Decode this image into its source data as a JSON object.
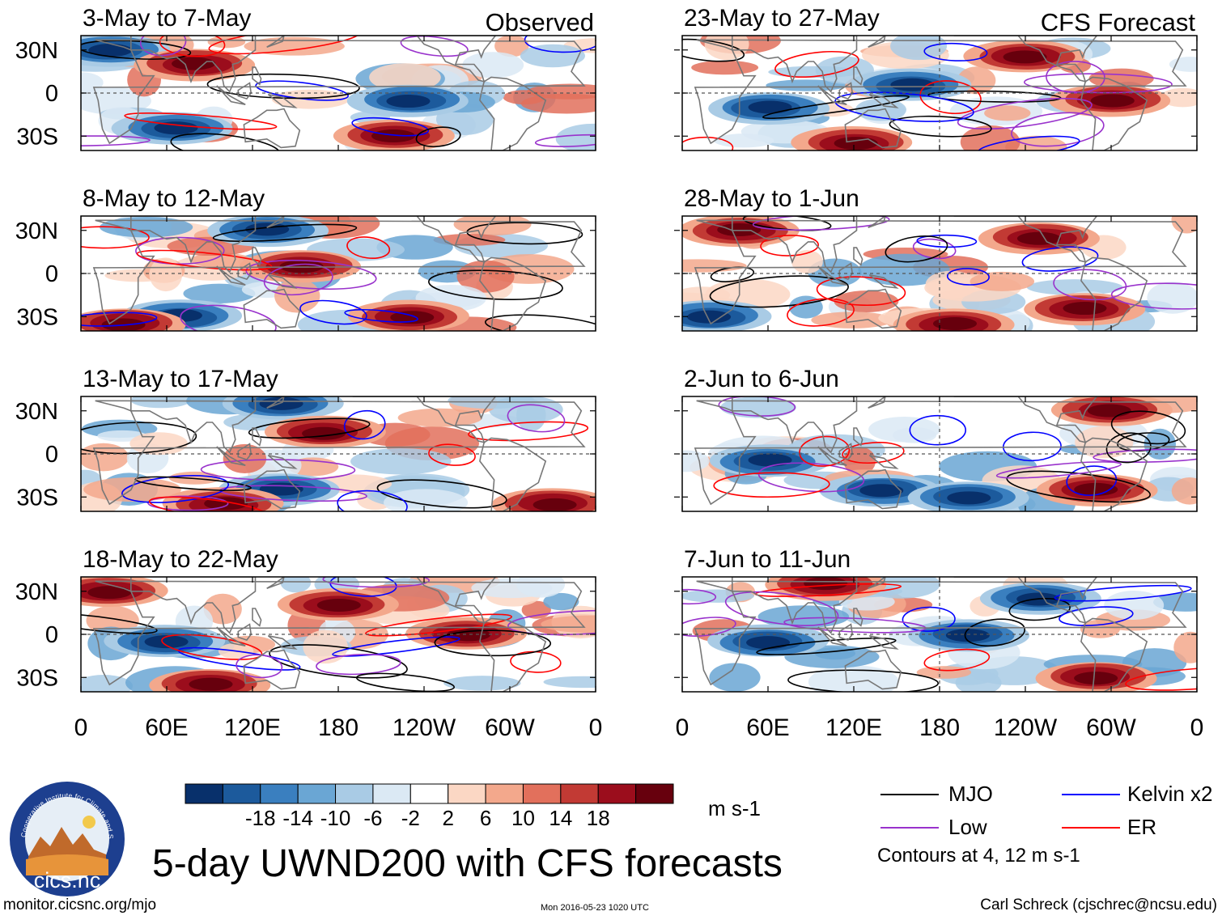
{
  "title": "5-day UWND200 with CFS forecasts",
  "chart_data": [
    {
      "type": "heatmap",
      "panel_title": "3-May to 7-May",
      "section_label": "Observed",
      "xlabel": "",
      "ylabel": "",
      "x_ticks": [
        "0",
        "60E",
        "120E",
        "180",
        "120W",
        "60W",
        "0"
      ],
      "y_ticks": [
        "30N",
        "0",
        "30S"
      ],
      "ylim": [
        -40,
        40
      ],
      "notable_features": [
        {
          "lon": 20,
          "lat": 30,
          "sign": "negative"
        },
        {
          "lon": 80,
          "lat": 20,
          "sign": "positive"
        },
        {
          "lon": 230,
          "lat": -5,
          "sign": "negative"
        },
        {
          "lon": 220,
          "lat": -30,
          "sign": "positive"
        },
        {
          "lon": 65,
          "lat": -25,
          "sign": "negative"
        }
      ]
    },
    {
      "type": "heatmap",
      "panel_title": "8-May to 12-May",
      "xlabel": "",
      "ylabel": "",
      "x_ticks": [
        "0",
        "60E",
        "120E",
        "180",
        "120W",
        "60W",
        "0"
      ],
      "y_ticks": [
        "30N",
        "0",
        "30S"
      ],
      "ylim": [
        -40,
        40
      ],
      "notable_features": [
        {
          "lon": 130,
          "lat": 30,
          "sign": "negative"
        },
        {
          "lon": 155,
          "lat": 5,
          "sign": "positive"
        },
        {
          "lon": 70,
          "lat": -30,
          "sign": "negative"
        },
        {
          "lon": 230,
          "lat": -30,
          "sign": "positive"
        },
        {
          "lon": 30,
          "lat": -35,
          "sign": "positive"
        }
      ]
    },
    {
      "type": "heatmap",
      "panel_title": "13-May to 17-May",
      "xlabel": "",
      "ylabel": "",
      "x_ticks": [
        "0",
        "60E",
        "120E",
        "180",
        "120W",
        "60W",
        "0"
      ],
      "y_ticks": [
        "30N",
        "0",
        "30S"
      ],
      "ylim": [
        -40,
        40
      ],
      "notable_features": [
        {
          "lon": 140,
          "lat": 35,
          "sign": "negative"
        },
        {
          "lon": 170,
          "lat": 15,
          "sign": "positive"
        },
        {
          "lon": 140,
          "lat": -25,
          "sign": "negative"
        },
        {
          "lon": 100,
          "lat": -35,
          "sign": "positive"
        },
        {
          "lon": 330,
          "lat": -35,
          "sign": "positive"
        }
      ]
    },
    {
      "type": "heatmap",
      "panel_title": "18-May to 22-May",
      "xlabel": "",
      "ylabel": "",
      "x_ticks": [
        "0",
        "60E",
        "120E",
        "180",
        "120W",
        "60W",
        "0"
      ],
      "y_ticks": [
        "30N",
        "0",
        "30S"
      ],
      "ylim": [
        -40,
        40
      ],
      "notable_features": [
        {
          "lon": 20,
          "lat": 30,
          "sign": "positive"
        },
        {
          "lon": 180,
          "lat": 20,
          "sign": "positive"
        },
        {
          "lon": 90,
          "lat": -35,
          "sign": "positive"
        },
        {
          "lon": 270,
          "lat": 0,
          "sign": "positive"
        },
        {
          "lon": 60,
          "lat": -5,
          "sign": "negative"
        }
      ]
    },
    {
      "type": "heatmap",
      "panel_title": "23-May to 27-May",
      "section_label": "CFS Forecast",
      "xlabel": "",
      "ylabel": "",
      "x_ticks": [
        "0",
        "60E",
        "120E",
        "180",
        "120W",
        "60W",
        "0"
      ],
      "y_ticks": [
        "30N",
        "0",
        "30S"
      ],
      "ylim": [
        -40,
        40
      ],
      "notable_features": [
        {
          "lon": 240,
          "lat": 25,
          "sign": "positive"
        },
        {
          "lon": 300,
          "lat": -5,
          "sign": "positive"
        },
        {
          "lon": 120,
          "lat": -35,
          "sign": "positive"
        },
        {
          "lon": 160,
          "lat": 5,
          "sign": "negative"
        },
        {
          "lon": 60,
          "lat": -10,
          "sign": "negative"
        }
      ]
    },
    {
      "type": "heatmap",
      "panel_title": "28-May to 1-Jun",
      "xlabel": "",
      "ylabel": "",
      "x_ticks": [
        "0",
        "60E",
        "120E",
        "180",
        "120W",
        "60W",
        "0"
      ],
      "y_ticks": [
        "30N",
        "0",
        "30S"
      ],
      "ylim": [
        -40,
        40
      ],
      "notable_features": [
        {
          "lon": 250,
          "lat": 25,
          "sign": "positive"
        },
        {
          "lon": 280,
          "lat": -25,
          "sign": "positive"
        },
        {
          "lon": 20,
          "lat": -30,
          "sign": "negative"
        },
        {
          "lon": 190,
          "lat": -35,
          "sign": "positive"
        },
        {
          "lon": 40,
          "lat": 30,
          "sign": "positive"
        }
      ]
    },
    {
      "type": "heatmap",
      "panel_title": "2-Jun to 6-Jun",
      "xlabel": "",
      "ylabel": "",
      "x_ticks": [
        "0",
        "60E",
        "120E",
        "180",
        "120W",
        "60W",
        "0"
      ],
      "y_ticks": [
        "30N",
        "0",
        "30S"
      ],
      "ylim": [
        -40,
        40
      ],
      "notable_features": [
        {
          "lon": 290,
          "lat": -25,
          "sign": "positive"
        },
        {
          "lon": 300,
          "lat": 30,
          "sign": "positive"
        },
        {
          "lon": 140,
          "lat": -25,
          "sign": "negative"
        },
        {
          "lon": 200,
          "lat": -30,
          "sign": "negative"
        },
        {
          "lon": 60,
          "lat": -5,
          "sign": "negative"
        }
      ]
    },
    {
      "type": "heatmap",
      "panel_title": "7-Jun to 11-Jun",
      "xlabel": "",
      "ylabel": "",
      "x_ticks": [
        "0",
        "60E",
        "120E",
        "180",
        "120W",
        "60W",
        "0"
      ],
      "y_ticks": [
        "30N",
        "0",
        "30S"
      ],
      "ylim": [
        -40,
        40
      ],
      "notable_features": [
        {
          "lon": 250,
          "lat": 25,
          "sign": "negative"
        },
        {
          "lon": 290,
          "lat": -30,
          "sign": "positive"
        },
        {
          "lon": 60,
          "lat": -5,
          "sign": "negative"
        },
        {
          "lon": 100,
          "lat": 35,
          "sign": "positive"
        },
        {
          "lon": 200,
          "lat": 0,
          "sign": "negative"
        }
      ]
    }
  ],
  "colorbar": {
    "labels": [
      "-18",
      "-14",
      "-10",
      "-6",
      "-2",
      "2",
      "6",
      "10",
      "14",
      "18"
    ],
    "colors": [
      "#08306b",
      "#1c5a9c",
      "#3a7fbf",
      "#6aa6d4",
      "#a9cbe5",
      "#dbe9f4",
      "#ffffff",
      "#fbd7c4",
      "#f3a88c",
      "#e2705c",
      "#c23a34",
      "#9b0d1c",
      "#67000d"
    ],
    "units": "m s-1"
  },
  "legend": {
    "items": [
      {
        "label": "MJO",
        "color": "#000000"
      },
      {
        "label": "Low",
        "color": "#9932cc"
      },
      {
        "label": "Kelvin x2",
        "color": "#0000ff"
      },
      {
        "label": "ER",
        "color": "#ff0000"
      }
    ],
    "note": "Contours at 4, 12 m s-1"
  },
  "footer": {
    "left": "monitor.cicsnc.org/mjo",
    "middle": "Mon 2016-05-23 1020 UTC",
    "right": "Carl Schreck (cjschrec@ncsu.edu)"
  },
  "logo": {
    "text": "cics.nc",
    "arc_text": "Cooperative Institute for Climate and Satellites"
  },
  "colors": {
    "land": "#777777",
    "frame": "#000000",
    "zero_line": "#555555"
  }
}
